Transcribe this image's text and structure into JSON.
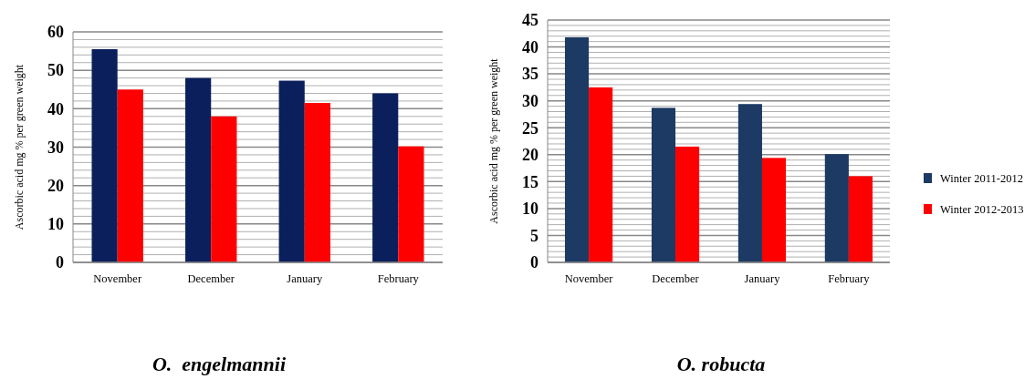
{
  "chart_data": [
    {
      "type": "bar",
      "title": "O.  engelmannii",
      "ylabel": "Ascorbic acid mg % per green weight",
      "categories": [
        "November",
        "December",
        "January",
        "February"
      ],
      "series": [
        {
          "color": "#0a1f5c",
          "values": [
            55.5,
            48,
            47.3,
            44
          ]
        },
        {
          "color": "#ff0000",
          "values": [
            45,
            38,
            41.5,
            30.2
          ]
        }
      ],
      "ylim": [
        0,
        60
      ],
      "yticks": [
        0,
        10,
        20,
        30,
        40,
        50,
        60
      ],
      "grid": "y",
      "legend": false
    },
    {
      "type": "bar",
      "title": "O. robucta",
      "ylabel": "Ascorbic acid mg % per green weight",
      "categories": [
        "November",
        "December",
        "January",
        "February"
      ],
      "series": [
        {
          "name": "Winter 2011-2012",
          "color": "#1c3a63",
          "values": [
            41.8,
            28.7,
            29.4,
            20.1
          ]
        },
        {
          "name": "Winter 2012-2013",
          "color": "#ff0000",
          "values": [
            32.5,
            21.5,
            19.4,
            16
          ]
        }
      ],
      "ylim": [
        0,
        45
      ],
      "yticks": [
        0,
        5,
        10,
        15,
        20,
        25,
        30,
        35,
        40,
        45
      ],
      "grid": "y",
      "legend": "right"
    }
  ]
}
